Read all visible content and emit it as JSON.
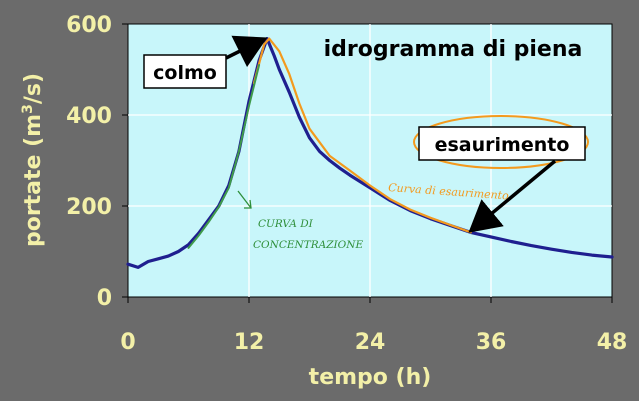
{
  "chart_data": {
    "type": "line",
    "title": "idrogramma di piena",
    "xlabel": "tempo (h)",
    "ylabel_main": "portate (m",
    "ylabel_sup": "3",
    "ylabel_tail": "/s)",
    "xlim": [
      0,
      48
    ],
    "ylim": [
      0,
      600
    ],
    "xticks": [
      "0",
      "12",
      "24",
      "36",
      "48"
    ],
    "xtick_values": [
      0,
      12,
      24,
      36,
      48
    ],
    "yticks": [
      "0",
      "200",
      "400",
      "600"
    ],
    "ytick_values": [
      0,
      200,
      400,
      600
    ],
    "grid": true,
    "colors": {
      "background": "#6b6b6b",
      "plot_area": "#c8f6fa",
      "grid": "#ffffff",
      "hydrograph": "#1f1f8f",
      "recession": "#f39a1e",
      "rising": "#3f9a4a",
      "tick_text": "#f3f0a8"
    },
    "series": [
      {
        "key": "hydrograph",
        "x": [
          0,
          1,
          2,
          3,
          4,
          5,
          6,
          7,
          8,
          9,
          10,
          11,
          12,
          13,
          13.8,
          14.5,
          15,
          16,
          17,
          18,
          19,
          20,
          21,
          22,
          24,
          26,
          28,
          30,
          32,
          34,
          36,
          38,
          40,
          42,
          44,
          46,
          48
        ],
        "y": [
          72,
          65,
          78,
          84,
          90,
          100,
          115,
          140,
          170,
          200,
          245,
          320,
          430,
          520,
          568,
          530,
          500,
          450,
          395,
          350,
          320,
          300,
          283,
          268,
          240,
          212,
          190,
          172,
          157,
          142,
          132,
          122,
          113,
          105,
          98,
          92,
          88
        ]
      },
      {
        "key": "recession",
        "x": [
          12.5,
          13.5,
          14,
          15,
          16,
          17,
          18,
          20,
          22,
          24,
          26,
          28,
          30,
          32,
          34
        ],
        "y": [
          470,
          555,
          568,
          540,
          490,
          425,
          370,
          310,
          278,
          245,
          215,
          192,
          174,
          158,
          142
        ]
      },
      {
        "key": "rising",
        "x": [
          6,
          7,
          8,
          9,
          10,
          11,
          12,
          13
        ],
        "y": [
          108,
          135,
          165,
          198,
          240,
          320,
          420,
          510
        ]
      }
    ],
    "annotations": {
      "colmo": {
        "text": "colmo",
        "x": 13.8,
        "y": 568
      },
      "esaurimento": {
        "text": "esaurimento",
        "x": 33.5,
        "y": 140
      },
      "recession_note": "Curva di esaurimento",
      "rising_note_1": "CURVA DI",
      "rising_note_2": "CONCENTRAZIONE"
    }
  }
}
